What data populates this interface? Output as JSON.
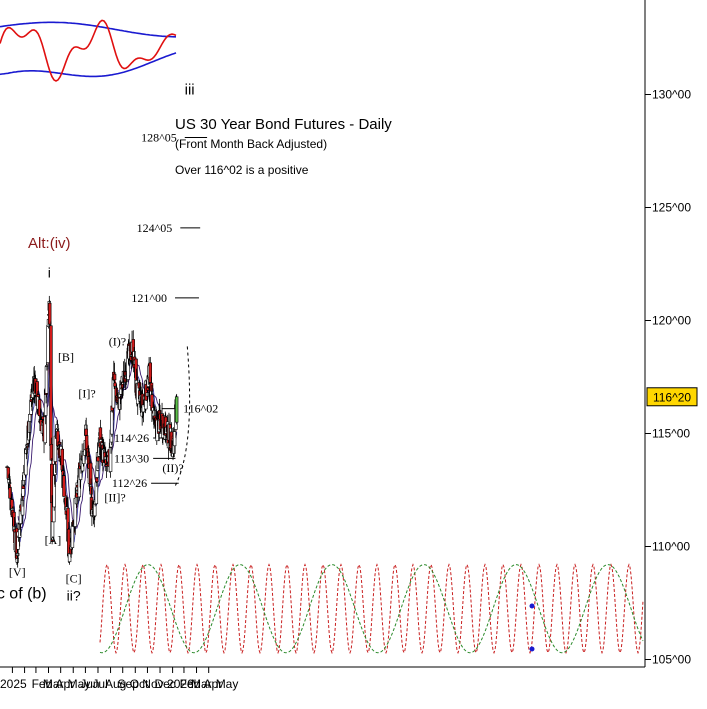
{
  "chart_data": {
    "type": "candlestick",
    "title": "US 30 Year Bond Futures - Daily",
    "subtitle": "(Front Month Back Adjusted)",
    "note": "Over 116^02 is a positive",
    "y_axis": {
      "ticks": [
        "105^00",
        "110^00",
        "115^00",
        "120^00",
        "125^00",
        "130^00"
      ],
      "tick_values": [
        105,
        110,
        115,
        120,
        125,
        130
      ],
      "ylim": [
        104.9,
        131.5
      ],
      "last_price_label": "116^20",
      "last_price": 116.625
    },
    "x_axis": {
      "ticks": [
        "2025",
        "Feb",
        "Mar",
        "Apr",
        "May",
        "Jun",
        "Jul",
        "Aug",
        "Sep",
        "Oct",
        "Nov",
        "Dec",
        "2026",
        "Feb",
        "Mar",
        "Apr",
        "May"
      ],
      "tick_dates": [
        "2025-01-02",
        "2025-02-01",
        "2025-03-01",
        "2025-04-01",
        "2025-05-01",
        "2025-06-01",
        "2025-07-01",
        "2025-08-01",
        "2025-09-01",
        "2025-10-01",
        "2025-11-01",
        "2025-12-01",
        "2026-01-01",
        "2026-02-01",
        "2026-03-01",
        "2026-04-01",
        "2026-05-01"
      ]
    },
    "price_path": [
      {
        "date": "2024-12-20",
        "close": 113.5
      },
      {
        "date": "2025-01-05",
        "close": 111.2
      },
      {
        "date": "2025-01-13",
        "close": 109.5
      },
      {
        "date": "2025-01-25",
        "close": 112.2
      },
      {
        "date": "2025-02-15",
        "close": 116.0
      },
      {
        "date": "2025-02-25",
        "close": 117.5
      },
      {
        "date": "2025-03-10",
        "close": 115.8
      },
      {
        "date": "2025-03-22",
        "close": 115.0
      },
      {
        "date": "2025-04-03",
        "close": 120.9
      },
      {
        "date": "2025-04-10",
        "close": 110.5
      },
      {
        "date": "2025-04-20",
        "close": 115.5
      },
      {
        "date": "2025-05-02",
        "close": 114.0
      },
      {
        "date": "2025-05-15",
        "close": 111.5
      },
      {
        "date": "2025-05-22",
        "close": 109.7
      },
      {
        "date": "2025-06-05",
        "close": 111.5
      },
      {
        "date": "2025-06-20",
        "close": 113.5
      },
      {
        "date": "2025-07-02",
        "close": 115.0
      },
      {
        "date": "2025-07-15",
        "close": 112.0
      },
      {
        "date": "2025-07-21",
        "close": 111.3
      },
      {
        "date": "2025-08-05",
        "close": 114.8
      },
      {
        "date": "2025-08-20",
        "close": 113.5
      },
      {
        "date": "2025-08-30",
        "close": 113.8
      },
      {
        "date": "2025-09-08",
        "close": 117.5
      },
      {
        "date": "2025-09-20",
        "close": 116.2
      },
      {
        "date": "2025-10-10",
        "close": 118.0
      },
      {
        "date": "2025-10-26",
        "close": 118.8
      },
      {
        "date": "2025-11-05",
        "close": 116.8
      },
      {
        "date": "2025-11-20",
        "close": 116.2
      },
      {
        "date": "2025-12-05",
        "close": 117.5
      },
      {
        "date": "2025-12-20",
        "close": 115.2
      },
      {
        "date": "2026-01-05",
        "close": 115.6
      },
      {
        "date": "2026-01-25",
        "close": 114.8
      },
      {
        "date": "2026-02-05",
        "close": 114.5
      },
      {
        "date": "2026-02-11",
        "close": 116.6
      }
    ],
    "annotations": [
      {
        "text": "Alt:(iv)",
        "date": "2025-04-03",
        "price": 123.2,
        "color": "#8b1a1a",
        "size": 15
      },
      {
        "text": "i",
        "date": "2025-04-03",
        "price": 121.9,
        "color": "#000000",
        "size": 14
      },
      {
        "text": "[B]",
        "date": "2025-05-14",
        "price": 118.2,
        "color": "#000000",
        "size": 12
      },
      {
        "text": "[I]?",
        "date": "2025-07-05",
        "price": 116.6,
        "color": "#000000",
        "size": 12
      },
      {
        "text": "(I)?",
        "date": "2025-09-18",
        "price": 118.9,
        "color": "#000000",
        "size": 12
      },
      {
        "text": "[II]?",
        "date": "2025-09-12",
        "price": 112.0,
        "color": "#000000",
        "size": 12
      },
      {
        "text": "[A]",
        "date": "2025-04-12",
        "price": 110.1,
        "color": "#000000",
        "size": 12
      },
      {
        "text": "[C]",
        "date": "2025-06-02",
        "price": 108.4,
        "color": "#000000",
        "size": 12
      },
      {
        "text": "ii?",
        "date": "2025-06-02",
        "price": 107.6,
        "color": "#000000",
        "size": 14
      },
      {
        "text": "[V]",
        "date": "2025-01-14",
        "price": 108.7,
        "color": "#000000",
        "size": 12
      },
      {
        "text": "c of (b)",
        "date": "2025-01-25",
        "price": 107.7,
        "color": "#000000",
        "size": 16
      },
      {
        "text": "(II)?",
        "date": "2026-02-02",
        "price": 113.3,
        "color": "#000000",
        "size": 12
      },
      {
        "text": "iii",
        "date": "2026-03-15",
        "price": 130.0,
        "color": "#000000",
        "size": 15
      }
    ],
    "target_levels": [
      {
        "label": "128^05",
        "price": 128.1,
        "from": "2026-03-03",
        "to": "2026-04-27"
      },
      {
        "label": "124^05",
        "price": 124.1,
        "from": "2026-02-20",
        "to": "2026-04-10"
      },
      {
        "label": "121^00",
        "price": 121.0,
        "from": "2026-02-07",
        "to": "2026-04-07"
      }
    ],
    "support_levels": [
      {
        "label": "116^02",
        "price": 116.1,
        "from": "2026-01-05",
        "to": "2026-02-12"
      },
      {
        "label": "114^26",
        "price": 114.8,
        "from": "2025-12-15",
        "to": "2026-02-10"
      },
      {
        "label": "113^30",
        "price": 113.9,
        "from": "2025-12-15",
        "to": "2026-02-08"
      },
      {
        "label": "112^26",
        "price": 112.8,
        "from": "2025-12-10",
        "to": "2026-02-16"
      }
    ],
    "oscillator": {
      "band_upper_start": 133.0,
      "band_upper_end": 132.8,
      "band_lower_start": 130.6,
      "band_lower_end": 131.6
    },
    "colors": {
      "bull_candle": "#ffffff",
      "bear_candle": "#d11a1a",
      "last_candle": "#5cbf4a",
      "ma_fast": "#d11a1a",
      "ma_mid": "#3a3aa8",
      "ma_slow": "#3a1a6e",
      "oscillator": "#e01010",
      "bands": "#1a1ad0",
      "cycle_red": "#c81e1e",
      "cycle_green": "#2a8a2a",
      "annotation": "#000000",
      "price_box": "#ffd700"
    }
  }
}
